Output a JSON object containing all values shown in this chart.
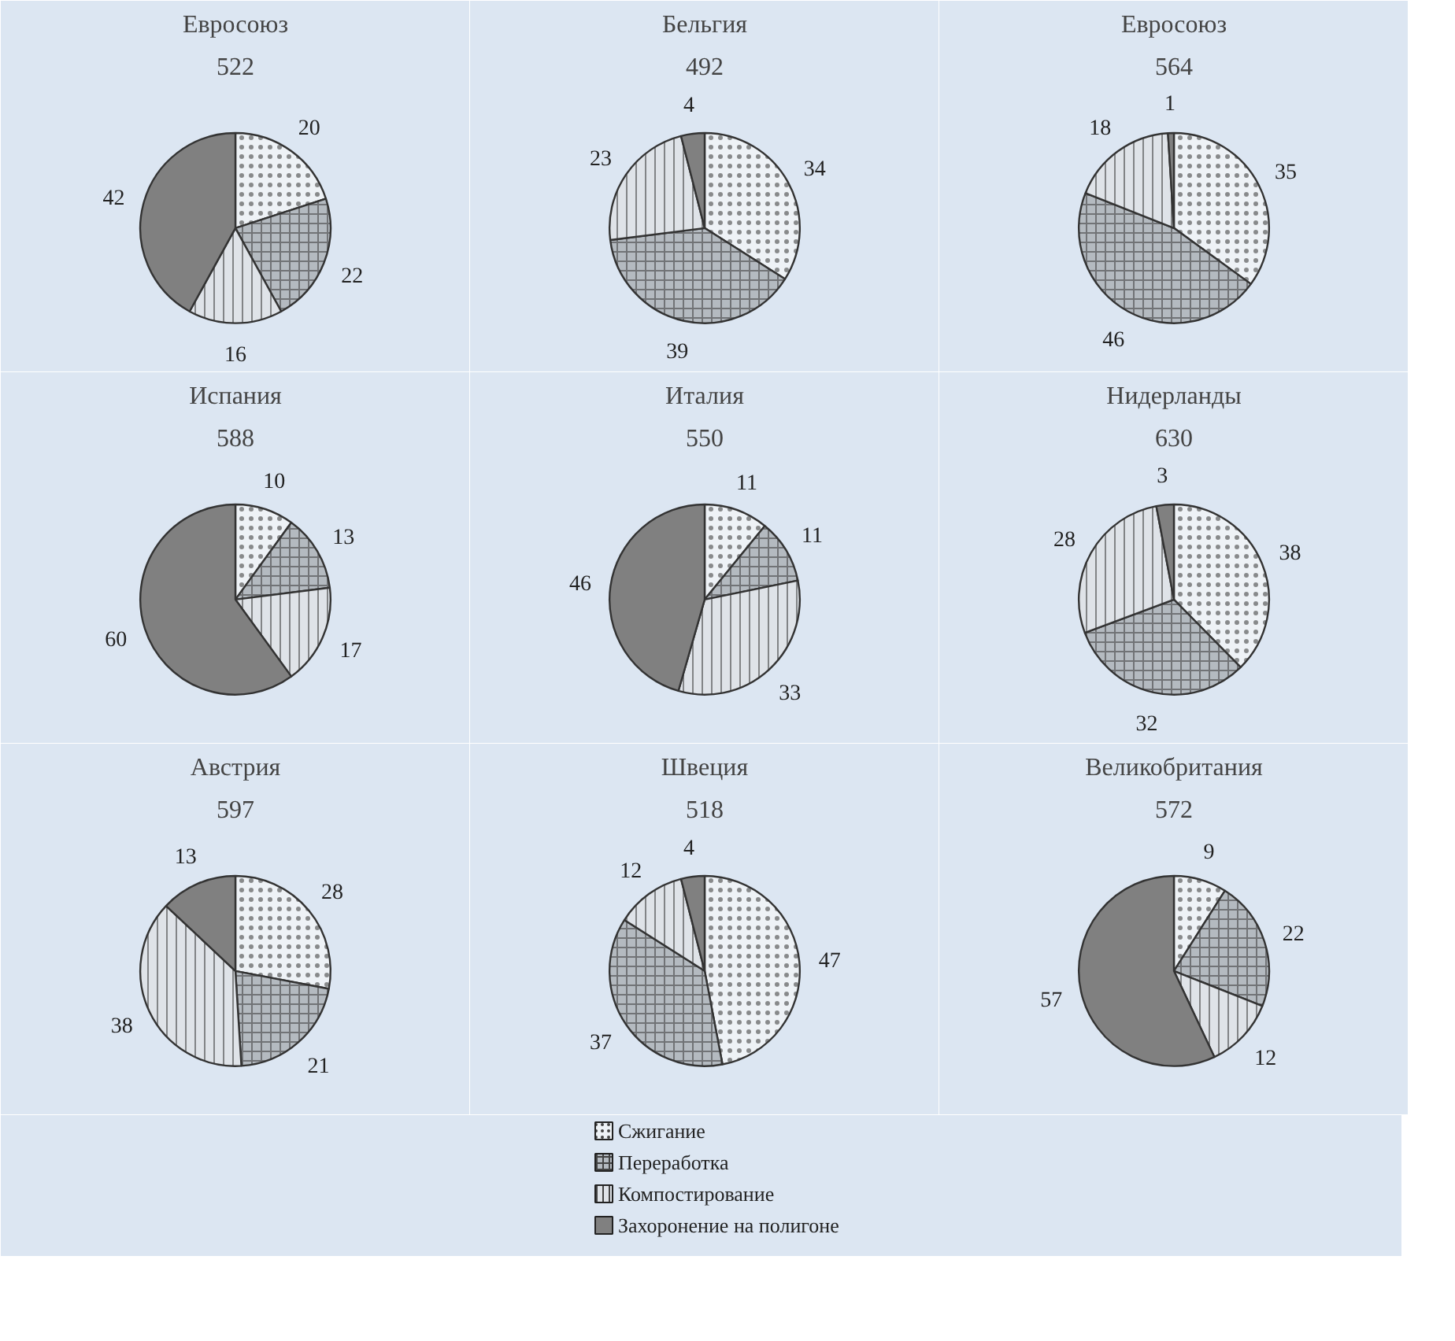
{
  "chart_data": [
    {
      "type": "pie",
      "title": "Евросоюз",
      "subtitle": "522",
      "values": [
        20,
        22,
        16,
        42
      ],
      "colors": [
        "#eef2f6",
        "#b4bac0",
        "#dfe3e8",
        "#808080"
      ],
      "data_labels": true
    },
    {
      "type": "pie",
      "title": "Бельгия",
      "subtitle": "492",
      "values": [
        34,
        39,
        23,
        4
      ],
      "colors": [
        "#eef2f6",
        "#b4bac0",
        "#dfe3e8",
        "#808080"
      ],
      "data_labels": true
    },
    {
      "type": "pie",
      "title": "Евросоюз",
      "subtitle": "564",
      "values": [
        35,
        46,
        18,
        1
      ],
      "colors": [
        "#eef2f6",
        "#b4bac0",
        "#dfe3e8",
        "#808080"
      ],
      "data_labels": true
    },
    {
      "type": "pie",
      "title": "Испания",
      "subtitle": "588",
      "values": [
        10,
        13,
        17,
        60
      ],
      "colors": [
        "#eef2f6",
        "#b4bac0",
        "#dfe3e8",
        "#808080"
      ],
      "data_labels": true
    },
    {
      "type": "pie",
      "title": "Италия",
      "subtitle": "550",
      "values": [
        11,
        11,
        33,
        46
      ],
      "colors": [
        "#eef2f6",
        "#b4bac0",
        "#dfe3e8",
        "#808080"
      ],
      "data_labels": true
    },
    {
      "type": "pie",
      "title": "Нидерланды",
      "subtitle": "630",
      "values": [
        38,
        32,
        28,
        3
      ],
      "colors": [
        "#eef2f6",
        "#b4bac0",
        "#dfe3e8",
        "#808080"
      ],
      "data_labels": true
    },
    {
      "type": "pie",
      "title": "Австрия",
      "subtitle": "597",
      "values": [
        28,
        21,
        38,
        13
      ],
      "colors": [
        "#eef2f6",
        "#b4bac0",
        "#dfe3e8",
        "#808080"
      ],
      "data_labels": true
    },
    {
      "type": "pie",
      "title": "Швеция",
      "subtitle": "518",
      "values": [
        47,
        37,
        12,
        4
      ],
      "colors": [
        "#eef2f6",
        "#b4bac0",
        "#dfe3e8",
        "#808080"
      ],
      "data_labels": true
    },
    {
      "type": "pie",
      "title": "Великобритания",
      "subtitle": "572",
      "categories": [
        "Сжигание",
        "Переработка",
        "Компостирование",
        "Захоронение на полигоне"
      ],
      "values": [
        9,
        22,
        12,
        57
      ],
      "colors": [
        "#eef2f6",
        "#b4bac0",
        "#dfe3e8",
        "#808080"
      ],
      "data_labels": true,
      "legend": "bottom"
    }
  ]
}
